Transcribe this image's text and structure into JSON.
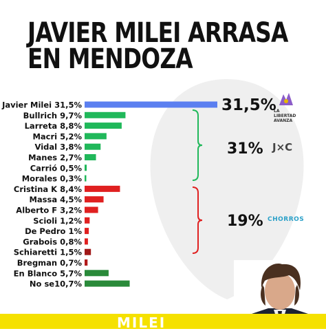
{
  "title_line1": "JAVIER MILEI ARRASA",
  "title_line2": "EN MENDOZA",
  "chart_data": {
    "type": "bar",
    "orientation": "horizontal",
    "xlim": [
      0,
      31.5
    ],
    "items": [
      {
        "label": "Javier Milei 31,5%",
        "value": 31.5,
        "color": "#5b7ff0"
      },
      {
        "label": "Bullrich 9,7%",
        "value": 9.7,
        "color": "#20b85a"
      },
      {
        "label": "Larreta 8,8%",
        "value": 8.8,
        "color": "#20b85a"
      },
      {
        "label": "Macri 5,2%",
        "value": 5.2,
        "color": "#20b85a"
      },
      {
        "label": "Vidal 3,8%",
        "value": 3.8,
        "color": "#20b85a"
      },
      {
        "label": "Manes 2,7%",
        "value": 2.7,
        "color": "#20b85a"
      },
      {
        "label": "Carrió 0,5%",
        "value": 0.5,
        "color": "#20b85a"
      },
      {
        "label": "Morales 0,3%",
        "value": 0.3,
        "color": "#20b85a"
      },
      {
        "label": "Cristina K 8,4%",
        "value": 8.4,
        "color": "#e02020"
      },
      {
        "label": "Massa 4,5%",
        "value": 4.5,
        "color": "#e02020"
      },
      {
        "label": "Alberto F 3,2%",
        "value": 3.2,
        "color": "#e02020"
      },
      {
        "label": "Scioli 1,2%",
        "value": 1.2,
        "color": "#e02020"
      },
      {
        "label": "De Pedro 1%",
        "value": 1.0,
        "color": "#e02020"
      },
      {
        "label": "Grabois 0,8%",
        "value": 0.8,
        "color": "#e02020"
      },
      {
        "label": "Schiaretti 1,5%",
        "value": 1.5,
        "color": "#a01818"
      },
      {
        "label": "Bregman 0,7%",
        "value": 0.7,
        "color": "#b21a1a"
      },
      {
        "label": "En Blanco 5,7%",
        "value": 5.7,
        "color": "#2a8a3a"
      },
      {
        "label": "No se10,7%",
        "value": 10.7,
        "color": "#2a8a3a"
      }
    ],
    "groups": [
      {
        "total": "31,5%",
        "logo": "La Libertad Avanza"
      },
      {
        "total": "31%",
        "logo": "J×C"
      },
      {
        "total": "19%",
        "logo": "CHORROS"
      }
    ]
  },
  "logos": {
    "lla_text": "LA LIBERTAD AVANZA",
    "jxc_text": "J×C",
    "chorros_text": "CHORROS"
  },
  "footer_text": "MILEI",
  "colors": {
    "milei_blue": "#5b7ff0",
    "jxc_green": "#20b85a",
    "uxp_red": "#e02020",
    "footer_yellow": "#f5e100"
  }
}
